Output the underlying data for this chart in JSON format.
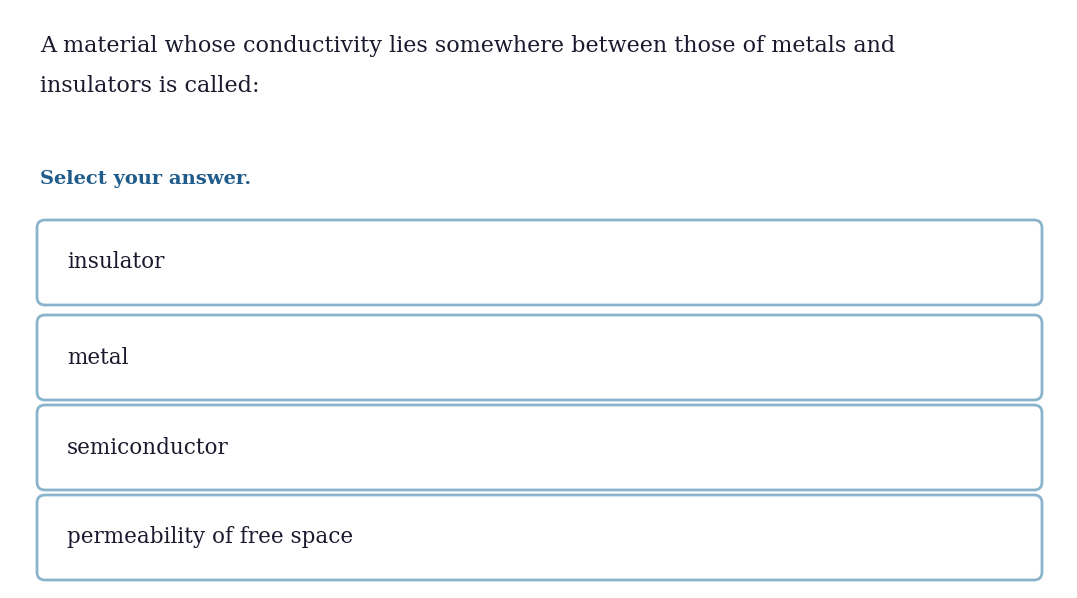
{
  "question_line1": "A material whose conductivity lies somewhere between those of metals and",
  "question_line2": "insulators is called:",
  "select_label": "Select your answer.",
  "options": [
    "insulator",
    "metal",
    "semiconductor",
    "permeability of free space"
  ],
  "background_color": "#ffffff",
  "question_color": "#1a1a2e",
  "select_color": "#1f5c8b",
  "option_text_color": "#1a1a2e",
  "box_border_color": "#8ab4cc",
  "box_fill_color": "#ffffff",
  "question_fontsize": 16,
  "select_fontsize": 14,
  "option_fontsize": 15.5,
  "fig_width": 10.77,
  "fig_height": 5.98,
  "dpi": 100
}
